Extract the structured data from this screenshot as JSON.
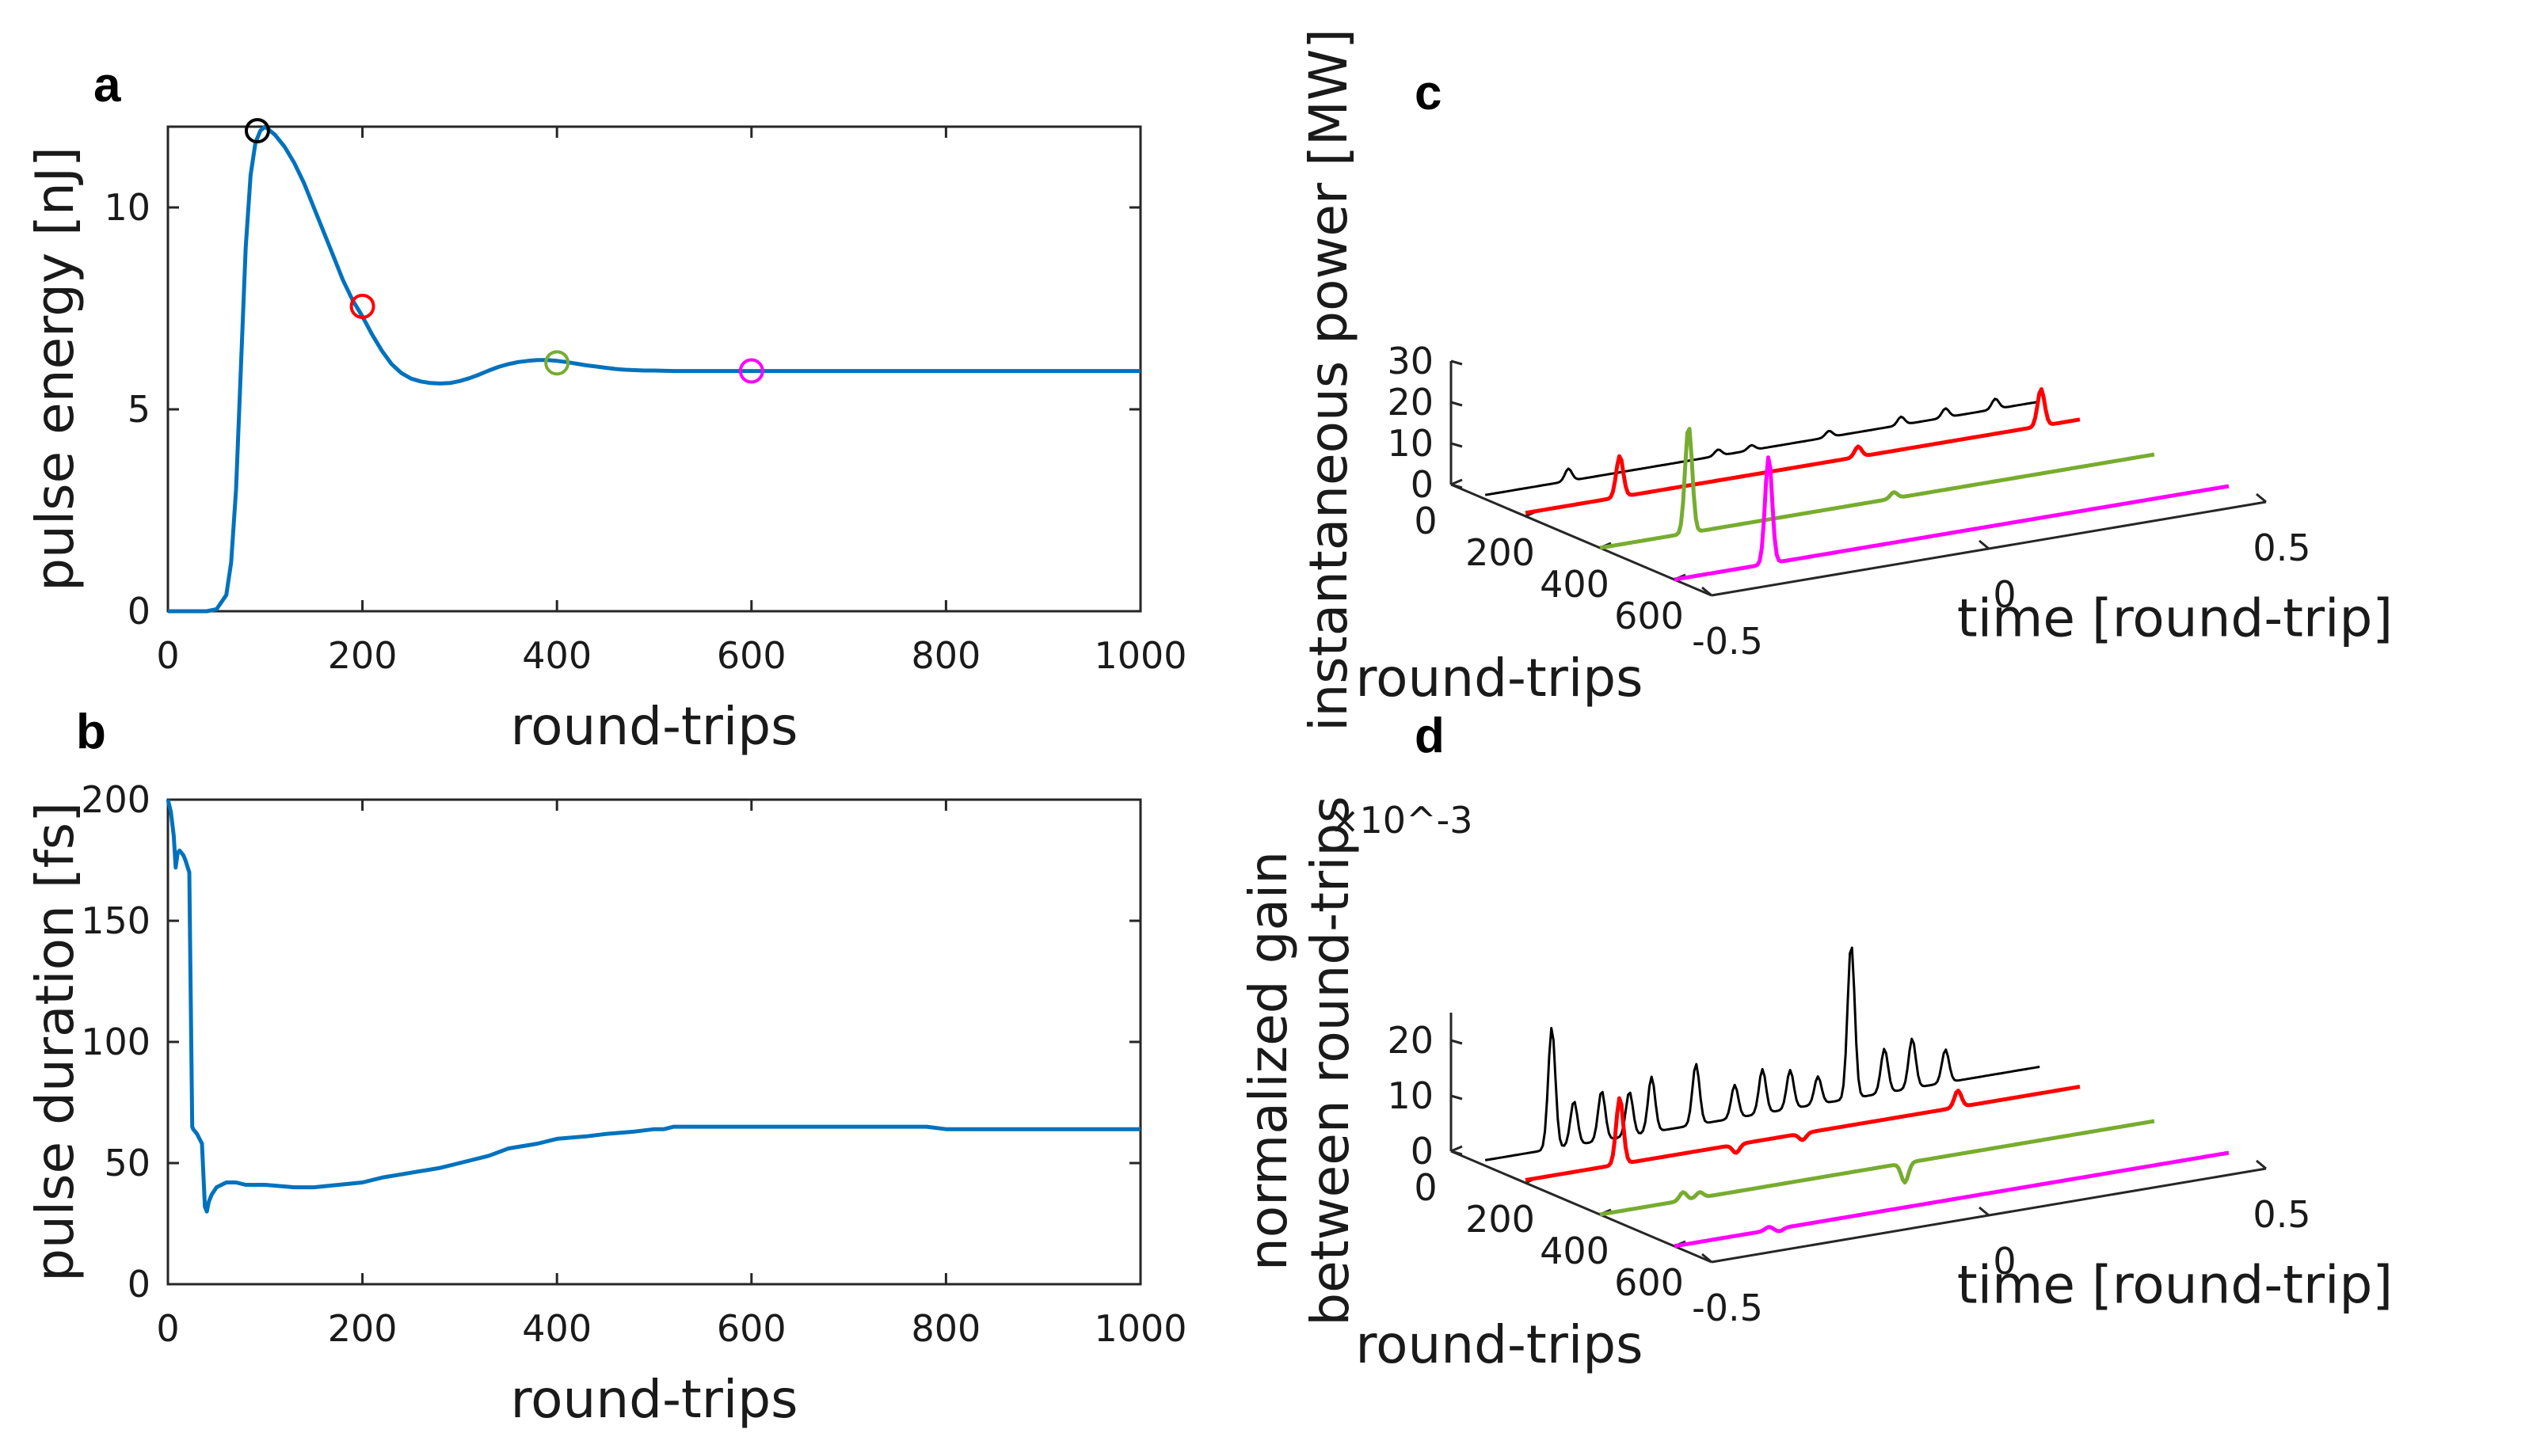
{
  "chart_data": [
    {
      "panel": "a",
      "type": "line",
      "xlabel": "round-trips",
      "ylabel": "pulse energy [nJ]",
      "xlim": [
        0,
        1000
      ],
      "ylim": [
        0,
        12
      ],
      "xticks": [
        "0",
        "200",
        "400",
        "600",
        "800",
        "1000"
      ],
      "yticks": [
        "0",
        "5",
        "10"
      ],
      "color": "#0072BD",
      "x": [
        0,
        20,
        40,
        50,
        60,
        65,
        70,
        75,
        80,
        85,
        90,
        95,
        100,
        110,
        120,
        130,
        140,
        150,
        160,
        170,
        180,
        190,
        200,
        210,
        220,
        230,
        240,
        250,
        260,
        270,
        280,
        290,
        300,
        310,
        320,
        330,
        340,
        350,
        360,
        370,
        380,
        390,
        400,
        410,
        420,
        430,
        440,
        450,
        460,
        470,
        480,
        490,
        500,
        520,
        540,
        560,
        580,
        600,
        650,
        700,
        800,
        900,
        1000
      ],
      "y": [
        0,
        0,
        0,
        0.05,
        0.4,
        1.2,
        3,
        6,
        9,
        10.8,
        11.6,
        11.9,
        12,
        11.8,
        11.5,
        11.1,
        10.6,
        10.0,
        9.4,
        8.8,
        8.2,
        7.7,
        7.3,
        6.85,
        6.45,
        6.12,
        5.9,
        5.76,
        5.69,
        5.65,
        5.64,
        5.65,
        5.7,
        5.77,
        5.86,
        5.96,
        6.05,
        6.12,
        6.17,
        6.2,
        6.22,
        6.22,
        6.2,
        6.17,
        6.13,
        6.09,
        6.06,
        6.03,
        6.0,
        5.98,
        5.97,
        5.96,
        5.96,
        5.95,
        5.95,
        5.95,
        5.95,
        5.95,
        5.95,
        5.95,
        5.95,
        5.95,
        5.95
      ],
      "markers": [
        {
          "x": 92,
          "y": 11.9,
          "color": "#000000"
        },
        {
          "x": 200,
          "y": 7.55,
          "color": "#FF0000"
        },
        {
          "x": 400,
          "y": 6.15,
          "color": "#77AC30"
        },
        {
          "x": 600,
          "y": 5.95,
          "color": "#FF00FF"
        }
      ]
    },
    {
      "panel": "b",
      "type": "line",
      "xlabel": "round-trips",
      "ylabel": "pulse duration [fs]",
      "xlim": [
        0,
        1000
      ],
      "ylim": [
        0,
        200
      ],
      "xticks": [
        "0",
        "200",
        "400",
        "600",
        "800",
        "1000"
      ],
      "yticks": [
        "0",
        "50",
        "100",
        "150",
        "200"
      ],
      "color": "#0072BD",
      "x": [
        0,
        3,
        6,
        8,
        10,
        12,
        14,
        16,
        18,
        22,
        25,
        26,
        28,
        30,
        35,
        38,
        40,
        42,
        45,
        50,
        60,
        70,
        80,
        100,
        130,
        150,
        200,
        220,
        250,
        280,
        300,
        330,
        350,
        380,
        400,
        430,
        450,
        480,
        500,
        510,
        520,
        600,
        700,
        780,
        800,
        900,
        1000
      ],
      "y": [
        200,
        195,
        185,
        172,
        178,
        179,
        178,
        177,
        175,
        170,
        65,
        64,
        63,
        62,
        58,
        32,
        30,
        34,
        37,
        40,
        42,
        42,
        41,
        41,
        40,
        40,
        42,
        44,
        46,
        48,
        50,
        53,
        56,
        58,
        60,
        61,
        62,
        63,
        64,
        64,
        65,
        65,
        65,
        65,
        64,
        64,
        64
      ]
    },
    {
      "panel": "c",
      "type": "line3d",
      "xlabel": "round-trips",
      "ylabel": "time [round-trip]",
      "zlabel": "instantaneous power [MW]",
      "x_ticks": [
        "0",
        "200",
        "400",
        "600"
      ],
      "t_ticks": [
        "-0.5",
        "0",
        "0.5"
      ],
      "z_ticks": [
        "0",
        "10",
        "20",
        "30"
      ],
      "zlim": [
        0,
        30
      ],
      "traces": [
        {
          "round_trip": 92,
          "color": "#000000",
          "peaks": [
            [
              -0.35,
              3
            ],
            [
              -0.08,
              1.5
            ],
            [
              -0.02,
              1.2
            ],
            [
              0.12,
              1.5
            ],
            [
              0.25,
              2.0
            ],
            [
              0.33,
              2.2
            ],
            [
              0.42,
              2.5
            ]
          ],
          "baseline": 1.0
        },
        {
          "round_trip": 200,
          "color": "#FF0000",
          "peaks": [
            [
              -0.33,
              10
            ],
            [
              0.1,
              2.5
            ],
            [
              0.43,
              9
            ]
          ],
          "baseline": 0.8
        },
        {
          "round_trip": 400,
          "color": "#77AC30",
          "peaks": [
            [
              -0.34,
              26
            ],
            [
              0.03,
              1.5
            ]
          ],
          "baseline": 0
        },
        {
          "round_trip": 600,
          "color": "#FF00FF",
          "peaks": [
            [
              -0.33,
              26
            ]
          ],
          "baseline": 0
        }
      ]
    },
    {
      "panel": "d",
      "type": "line3d",
      "xlabel": "round-trips",
      "ylabel": "time [round-trip]",
      "zlabel": "normalized gain between round-trips",
      "zscale": "×10^-3",
      "x_ticks": [
        "0",
        "200",
        "400",
        "600"
      ],
      "t_ticks": [
        "-0.5",
        "0",
        "0.5"
      ],
      "z_ticks": [
        "0",
        "10",
        "20"
      ],
      "zlim": [
        0,
        25
      ],
      "traces": [
        {
          "round_trip": 92,
          "color": "#000000",
          "peaks": [
            [
              -0.38,
              22
            ],
            [
              -0.34,
              8
            ],
            [
              -0.29,
              9
            ],
            [
              -0.24,
              8
            ],
            [
              -0.2,
              10
            ],
            [
              -0.12,
              11
            ],
            [
              -0.05,
              6
            ],
            [
              0.0,
              8
            ],
            [
              0.05,
              7
            ],
            [
              0.1,
              5
            ],
            [
              0.16,
              28
            ],
            [
              0.22,
              8
            ],
            [
              0.27,
              9
            ],
            [
              0.33,
              6
            ]
          ],
          "baseline": 1.0
        },
        {
          "round_trip": 200,
          "color": "#FF0000",
          "peaks": [
            [
              -0.33,
              12
            ],
            [
              -0.12,
              -1.5
            ],
            [
              0.0,
              -1.2
            ],
            [
              0.28,
              3
            ]
          ],
          "baseline": 0.5
        },
        {
          "round_trip": 400,
          "color": "#77AC30",
          "peaks": [
            [
              -0.35,
              1.5
            ],
            [
              -0.32,
              1.0
            ],
            [
              0.05,
              -3.5
            ]
          ],
          "baseline": 0
        },
        {
          "round_trip": 600,
          "color": "#FF00FF",
          "peaks": [
            [
              -0.33,
              0.6
            ],
            [
              -0.31,
              -0.5
            ]
          ],
          "baseline": 0
        }
      ]
    }
  ],
  "labels": {
    "panel_a": "a",
    "panel_b": "b",
    "panel_c": "c",
    "panel_d": "d"
  }
}
